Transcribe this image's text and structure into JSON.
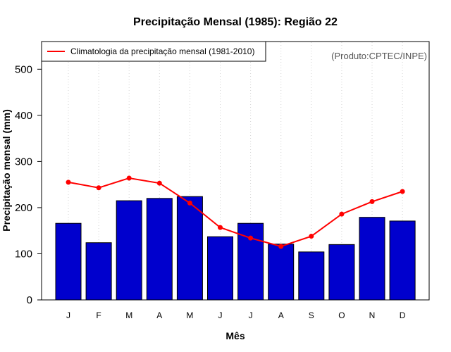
{
  "chart_data": {
    "type": "bar",
    "title": "Precipitação Mensal (1985): Região 22",
    "xlabel": "Mês",
    "ylabel": "Precipitação mensal (mm)",
    "categories": [
      "J",
      "F",
      "M",
      "A",
      "M",
      "J",
      "J",
      "A",
      "S",
      "O",
      "N",
      "D"
    ],
    "ylim": [
      0,
      560
    ],
    "yticks": [
      0,
      100,
      200,
      300,
      400,
      500
    ],
    "grid": "vertical dotted",
    "series": [
      {
        "name": "Precipitação mensal (1985)",
        "type": "bar",
        "color": "#0000CD",
        "values": [
          166,
          124,
          215,
          220,
          224,
          137,
          166,
          121,
          104,
          120,
          179,
          171
        ]
      },
      {
        "name": "Climatologia da precipitação mensal (1981-2010)",
        "type": "line",
        "color": "#FF0000",
        "values": [
          255,
          243,
          264,
          253,
          210,
          157,
          134,
          116,
          138,
          186,
          213,
          235
        ]
      }
    ],
    "legend": {
      "position": "top-left",
      "entries": [
        "Climatologia da precipitação mensal (1981-2010)"
      ]
    },
    "annotation": "(Produto:CPTEC/INPE)"
  }
}
